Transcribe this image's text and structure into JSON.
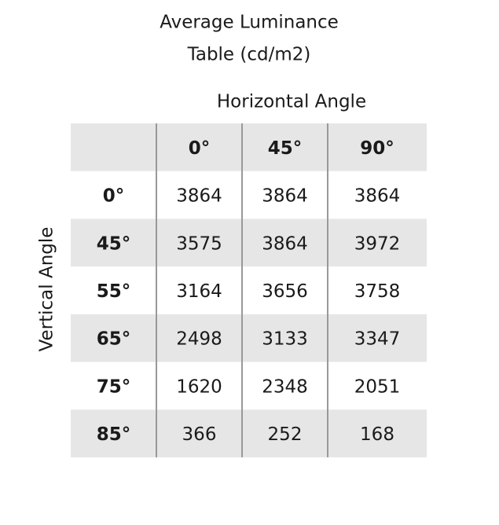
{
  "title_lines": [
    "Average Luminance",
    "Table (cd/m2)"
  ],
  "column_axis_label": "Horizontal Angle",
  "row_axis_label": "Vertical Angle",
  "table": {
    "columns": [
      "0°",
      "45°",
      "90°"
    ],
    "rows": [
      {
        "label": "0°",
        "values": [
          3864,
          3864,
          3864
        ]
      },
      {
        "label": "45°",
        "values": [
          3575,
          3864,
          3972
        ]
      },
      {
        "label": "55°",
        "values": [
          3164,
          3656,
          3758
        ]
      },
      {
        "label": "65°",
        "values": [
          2498,
          3133,
          3347
        ]
      },
      {
        "label": "75°",
        "values": [
          1620,
          2348,
          2051
        ]
      },
      {
        "label": "85°",
        "values": [
          366,
          252,
          168
        ]
      }
    ]
  }
}
